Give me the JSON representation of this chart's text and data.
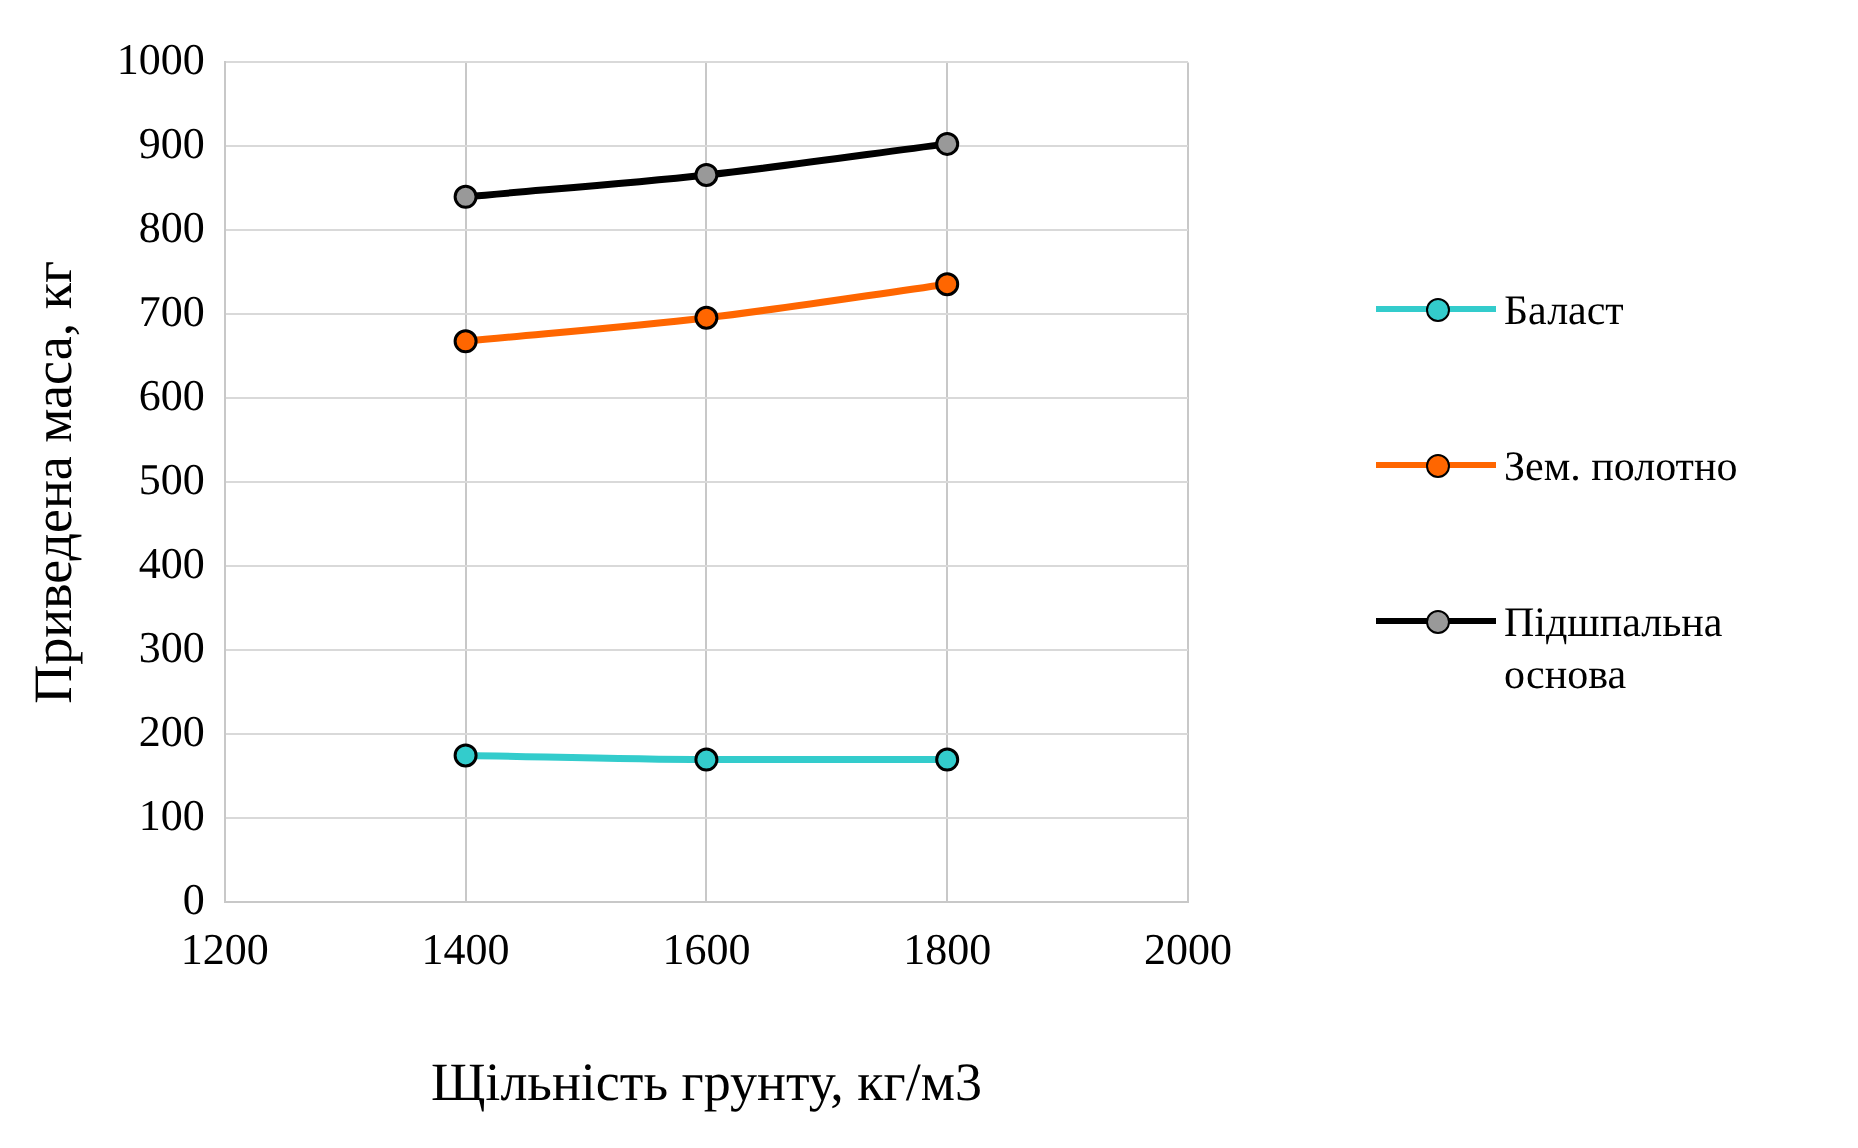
{
  "chart_data": {
    "type": "line",
    "xlabel": "Щільність грунту, кг/м3",
    "ylabel": "Приведена маса, кг",
    "x": [
      1400,
      1600,
      1800
    ],
    "series": [
      {
        "name": "Баласт",
        "color": "#33cccc",
        "values": [
          175,
          170,
          170
        ]
      },
      {
        "name": "Зем. полотно",
        "color": "#ff6600",
        "values": [
          668,
          696,
          736
        ]
      },
      {
        "name": "Підшпальна основа",
        "color": "#000000",
        "values": [
          840,
          866,
          903
        ]
      }
    ],
    "xlim": [
      1200,
      2000
    ],
    "xticks": [
      1200,
      1400,
      1600,
      1800,
      2000
    ],
    "ylim": [
      0,
      1000
    ],
    "yticks": [
      0,
      100,
      200,
      300,
      400,
      500,
      600,
      700,
      800,
      900,
      1000
    ],
    "grid": true,
    "legend": "right",
    "marker": "circle",
    "line_style": "solid"
  }
}
